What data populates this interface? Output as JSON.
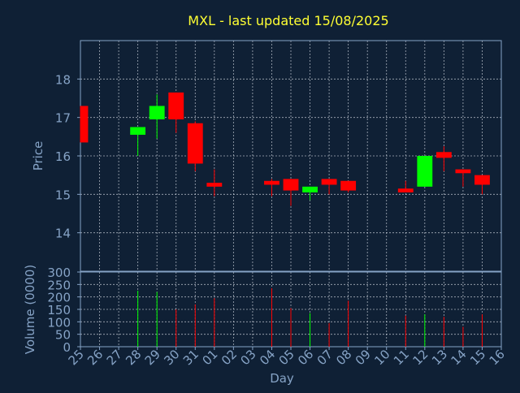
{
  "colors": {
    "background": "#0f2035",
    "title": "#ffff33",
    "axis_text": "#86a3c6",
    "grid": "#d8dde6",
    "up": "#00ff00",
    "down": "#ff0000"
  },
  "chart_data": [
    {
      "type": "candlestick",
      "title": "MXL - last updated 15/08/2025",
      "ylabel": "Price",
      "ylim": [
        13,
        19
      ],
      "yticks": [
        14,
        15,
        16,
        17,
        18
      ],
      "grid": true,
      "x_index_range": [
        0,
        22
      ],
      "candles": [
        {
          "x": 0,
          "day": "25",
          "open": 17.3,
          "high": 17.3,
          "low": 16.35,
          "close": 16.35
        },
        {
          "x": 3,
          "day": "28",
          "open": 16.55,
          "high": 16.75,
          "low": 16.0,
          "close": 16.75
        },
        {
          "x": 4,
          "day": "29",
          "open": 16.95,
          "high": 17.6,
          "low": 16.45,
          "close": 17.3
        },
        {
          "x": 5,
          "day": "30",
          "open": 17.65,
          "high": 17.65,
          "low": 16.6,
          "close": 16.95
        },
        {
          "x": 6,
          "day": "31",
          "open": 16.85,
          "high": 16.9,
          "low": 15.6,
          "close": 15.8
        },
        {
          "x": 7,
          "day": "01",
          "open": 15.3,
          "high": 15.65,
          "low": 14.95,
          "close": 15.2
        },
        {
          "x": 10,
          "day": "04",
          "open": 15.35,
          "high": 15.4,
          "low": 14.95,
          "close": 15.25
        },
        {
          "x": 11,
          "day": "05",
          "open": 15.4,
          "high": 15.4,
          "low": 14.7,
          "close": 15.1
        },
        {
          "x": 12,
          "day": "06",
          "open": 15.05,
          "high": 15.2,
          "low": 14.85,
          "close": 15.2
        },
        {
          "x": 13,
          "day": "07",
          "open": 15.4,
          "high": 15.4,
          "low": 15.0,
          "close": 15.25
        },
        {
          "x": 14,
          "day": "08",
          "open": 15.35,
          "high": 15.35,
          "low": 15.05,
          "close": 15.1
        },
        {
          "x": 17,
          "day": "11",
          "open": 15.15,
          "high": 15.35,
          "low": 15.05,
          "close": 15.05
        },
        {
          "x": 18,
          "day": "12",
          "open": 15.2,
          "high": 16.0,
          "low": 15.2,
          "close": 16.0
        },
        {
          "x": 19,
          "day": "13",
          "open": 16.1,
          "high": 16.25,
          "low": 15.6,
          "close": 15.95
        },
        {
          "x": 20,
          "day": "14",
          "open": 15.65,
          "high": 15.65,
          "low": 15.2,
          "close": 15.55
        },
        {
          "x": 21,
          "day": "15",
          "open": 15.5,
          "high": 15.5,
          "low": 15.0,
          "close": 15.25
        }
      ]
    },
    {
      "type": "bar",
      "ylabel": "Volume (0000)",
      "xlabel": "Day",
      "ylim": [
        0,
        300
      ],
      "yticks": [
        0,
        50,
        100,
        150,
        200,
        250,
        300
      ],
      "grid": true,
      "categories": [
        "25",
        "26",
        "27",
        "28",
        "29",
        "30",
        "31",
        "01",
        "02",
        "03",
        "04",
        "05",
        "06",
        "07",
        "08",
        "09",
        "10",
        "11",
        "12",
        "13",
        "14",
        "15",
        "16"
      ],
      "values": [
        null,
        null,
        null,
        225,
        220,
        150,
        170,
        195,
        null,
        null,
        235,
        155,
        135,
        95,
        185,
        null,
        null,
        125,
        130,
        120,
        80,
        130,
        null
      ],
      "direction": [
        "down",
        null,
        null,
        "up",
        "up",
        "down",
        "down",
        "down",
        null,
        null,
        "down",
        "down",
        "up",
        "down",
        "down",
        null,
        null,
        "down",
        "up",
        "down",
        "down",
        "down",
        null
      ]
    }
  ]
}
